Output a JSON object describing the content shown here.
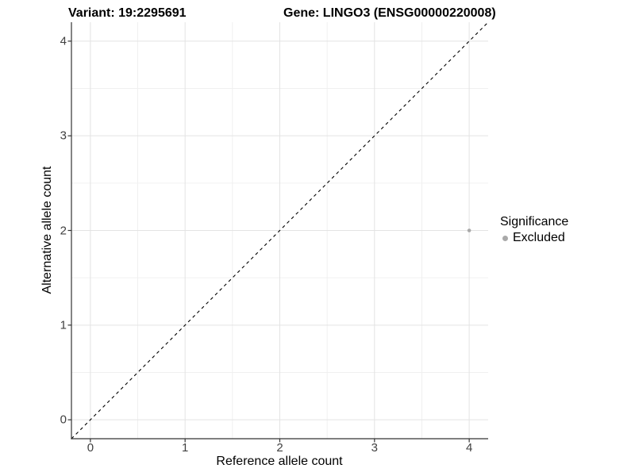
{
  "titles": {
    "variant": "Variant: 19:2295691",
    "gene": "Gene: LINGO3 (ENSG00000220008)"
  },
  "chart_data": {
    "type": "scatter",
    "title": "Variant: 19:2295691   Gene: LINGO3 (ENSG00000220008)",
    "xlabel": "Reference allele count",
    "ylabel": "Alternative allele count",
    "xlim": [
      -0.2,
      4.2
    ],
    "ylim": [
      -0.2,
      4.2
    ],
    "xticks": [
      0,
      1,
      2,
      3,
      4
    ],
    "yticks": [
      0,
      1,
      2,
      3,
      4
    ],
    "x_minor_ticks": [
      0.5,
      1.5,
      2.5,
      3.5
    ],
    "y_minor_ticks": [
      0.5,
      1.5,
      2.5,
      3.5
    ],
    "grid": "on",
    "series": [
      {
        "name": "Excluded",
        "color": "#a9a9a9",
        "points": [
          {
            "x": 4,
            "y": 2
          }
        ]
      }
    ],
    "reference_line": {
      "kind": "identity y=x",
      "style": "dashed",
      "color": "#000000"
    },
    "legend": {
      "title": "Significance",
      "position": "right",
      "entries": [
        {
          "label": "Excluded",
          "color": "#a9a9a9"
        }
      ]
    },
    "colors": {
      "grid_major": "#e3e3e3",
      "grid_minor": "#f0f0f0",
      "axis_line": "#333333",
      "tick_label": "#404040",
      "point": "#a9a9a9"
    }
  }
}
